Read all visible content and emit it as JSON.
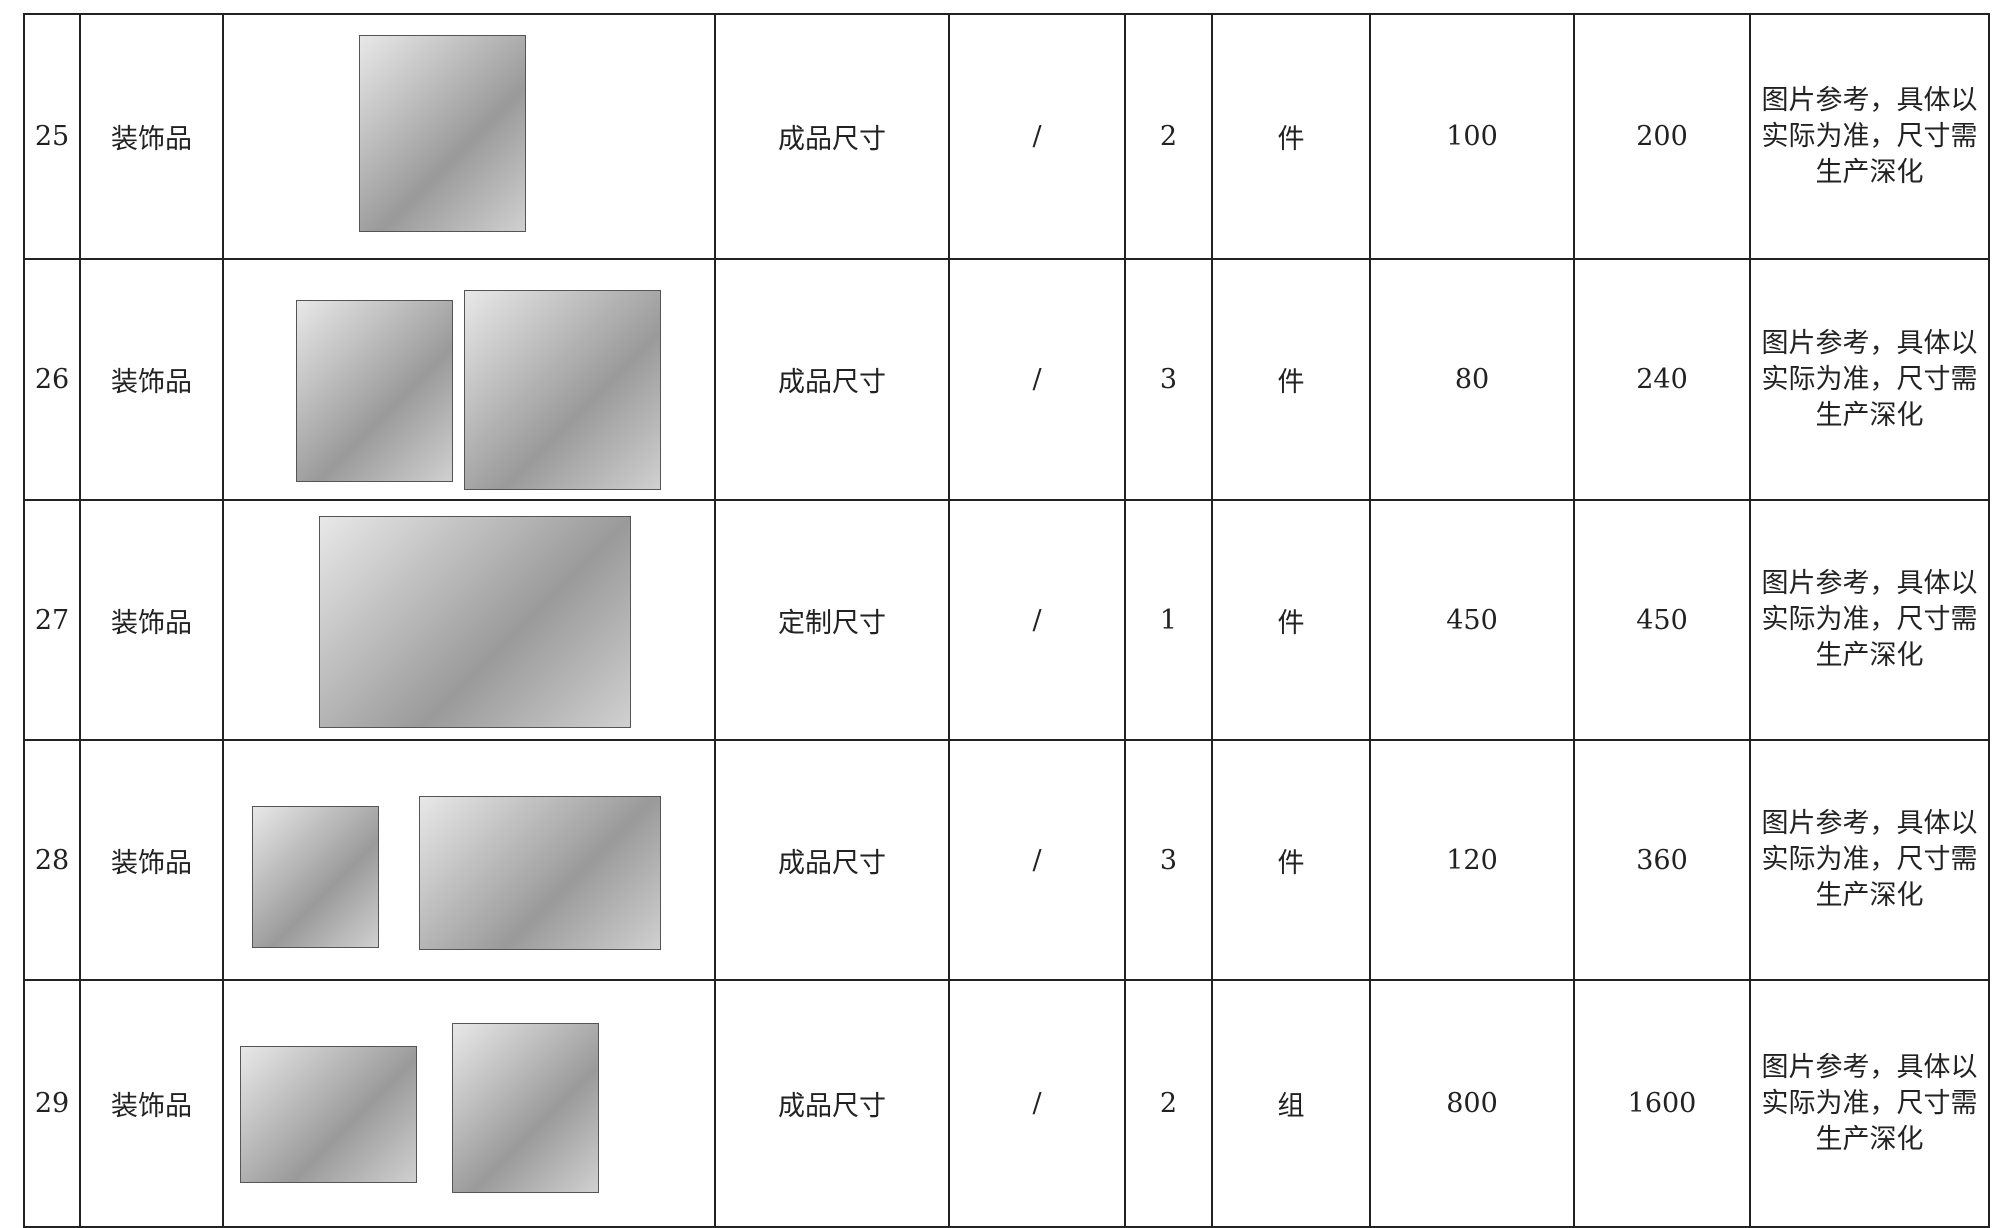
{
  "table": {
    "rows": [
      [
        "25",
        "装饰品",
        "成品尺寸",
        "/",
        2,
        "件",
        100,
        200,
        "图片参考，具体以实际为准，尺寸需生产深化"
      ],
      [
        "26",
        "装饰品",
        "成品尺寸",
        "/",
        3,
        "件",
        80,
        240,
        "图片参考，具体以实际为准，尺寸需生产深化"
      ],
      [
        "27",
        "装饰品",
        "定制尺寸",
        "/",
        1,
        "件",
        450,
        450,
        "图片参考，具体以实际为准，尺寸需生产深化"
      ],
      [
        "28",
        "装饰品",
        "成品尺寸",
        "/",
        3,
        "件",
        120,
        360,
        "图片参考，具体以实际为准，尺寸需生产深化"
      ],
      [
        "29",
        "装饰品",
        "成品尺寸",
        "/",
        2,
        "组",
        800,
        1600,
        "图片参考，具体以实际为准，尺寸需生产深化"
      ]
    ]
  }
}
